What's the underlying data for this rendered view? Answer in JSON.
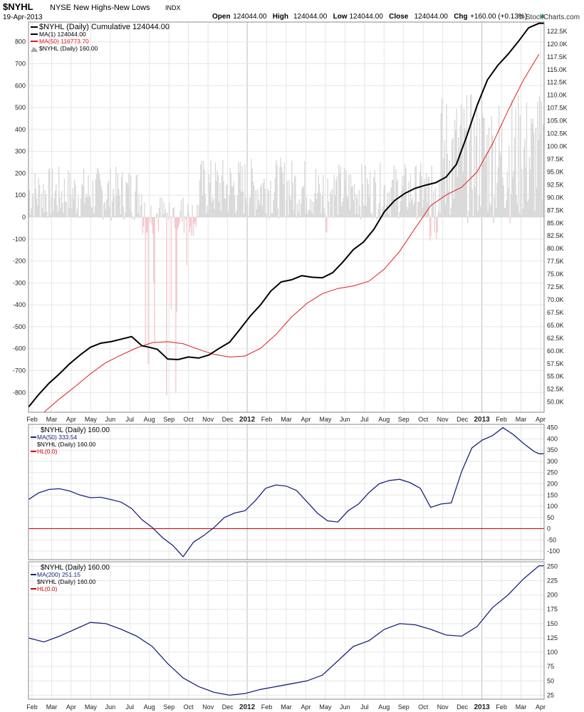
{
  "header": {
    "symbol": "$NYHL",
    "name": "NYSE New Highs-New Lows",
    "exchange": "INDX",
    "date": "19-Apr-2013",
    "brand": "© StockCharts.com",
    "quote": [
      {
        "label": "Open",
        "value": "124044.00"
      },
      {
        "label": "High",
        "value": "124044.00"
      },
      {
        "label": "Low",
        "value": "124044.00"
      },
      {
        "label": "Close",
        "value": "124044.00"
      },
      {
        "label": "Chg",
        "value": "+160.00 (+0.13%)"
      }
    ]
  },
  "colors": {
    "cumulative": "#000000",
    "ma50": "#e31a1c",
    "daily_pos": "#d9d9d9",
    "daily_neg": "#f4c9cc",
    "oscillator": "#1a237e",
    "zero_line": "#cc0000",
    "grid": "#e6e6e6",
    "up_arrow": "#2e8b57"
  },
  "x_months": [
    "Feb",
    "Mar",
    "Apr",
    "May",
    "Jun",
    "Jul",
    "Aug",
    "Sep",
    "Oct",
    "Nov",
    "Dec",
    "2012",
    "Feb",
    "Mar",
    "Apr",
    "May",
    "Jun",
    "Jul",
    "Aug",
    "Sep",
    "Oct",
    "Nov",
    "Dec",
    "2013",
    "Feb",
    "Mar",
    "Apr"
  ],
  "chart_data": [
    {
      "type": "line",
      "title": "$NYHL (Daily) Cumulative 124044.00",
      "legend": [
        {
          "label": "$NYHL (Daily) Cumulative 124044.00",
          "color": "#000000",
          "style": "line"
        },
        {
          "label": "MA(1) 124044.00",
          "color": "#000000",
          "style": "line"
        },
        {
          "label": "MA(50) 116773.70",
          "color": "#e31a1c",
          "style": "line"
        },
        {
          "label": "$NYHL (Daily) 160.00",
          "color": "#aaaaaa",
          "style": "area"
        }
      ],
      "right_axis": {
        "min": 48000,
        "max": 124300,
        "ticks": [
          "50.0K",
          "52.5K",
          "55.0K",
          "57.5K",
          "60.0K",
          "62.5K",
          "65.0K",
          "67.5K",
          "70.0K",
          "72.5K",
          "75.0K",
          "77.5K",
          "80.0K",
          "82.5K",
          "85.0K",
          "87.5K",
          "90.0K",
          "92.5K",
          "95.0K",
          "97.5K",
          "100.0K",
          "102.5K",
          "105.0K",
          "107.5K",
          "110.0K",
          "112.5K",
          "115.0K",
          "117.5K",
          "120.0K",
          "122.5K"
        ],
        "tick_values": [
          50000,
          52500,
          55000,
          57500,
          60000,
          62500,
          65000,
          67500,
          70000,
          72500,
          75000,
          77500,
          80000,
          82500,
          85000,
          87500,
          90000,
          92500,
          95000,
          97500,
          100000,
          102500,
          105000,
          107500,
          110000,
          112500,
          115000,
          117500,
          120000,
          122500
        ]
      },
      "left_axis": {
        "min": -890,
        "max": 890,
        "ticks": [
          "800",
          "700",
          "600",
          "500",
          "400",
          "300",
          "200",
          "100",
          "0",
          "-100",
          "-200",
          "-300",
          "-400",
          "-500",
          "-600",
          "-700",
          "-800"
        ],
        "tick_values": [
          800,
          700,
          600,
          500,
          400,
          300,
          200,
          100,
          0,
          -100,
          -200,
          -300,
          -400,
          -500,
          -600,
          -700,
          -800
        ]
      },
      "series": [
        {
          "name": "Cumulative / MA(1)",
          "axis": "right",
          "x": [
            0,
            0.02,
            0.04,
            0.06,
            0.08,
            0.1,
            0.12,
            0.14,
            0.16,
            0.18,
            0.2,
            0.22,
            0.235,
            0.25,
            0.27,
            0.29,
            0.31,
            0.33,
            0.35,
            0.37,
            0.39,
            0.41,
            0.43,
            0.45,
            0.47,
            0.49,
            0.51,
            0.53,
            0.55,
            0.57,
            0.59,
            0.61,
            0.63,
            0.65,
            0.67,
            0.69,
            0.71,
            0.73,
            0.75,
            0.77,
            0.79,
            0.81,
            0.83,
            0.85,
            0.87,
            0.89,
            0.91,
            0.93,
            0.95,
            0.97,
            0.99,
            1.0
          ],
          "values": [
            49000,
            51500,
            53700,
            55500,
            57500,
            59200,
            60700,
            61500,
            61800,
            62300,
            62800,
            61000,
            60700,
            60300,
            58400,
            58300,
            58800,
            58600,
            59200,
            60500,
            61700,
            64200,
            66800,
            69000,
            71700,
            73500,
            73900,
            74700,
            74400,
            74300,
            75300,
            77400,
            79800,
            81300,
            83800,
            87200,
            89400,
            90800,
            91800,
            92400,
            92900,
            94000,
            96500,
            102000,
            108000,
            113000,
            115800,
            118000,
            120500,
            123200,
            124044,
            124044
          ]
        },
        {
          "name": "MA(50)",
          "axis": "right",
          "x": [
            0.03,
            0.06,
            0.09,
            0.12,
            0.15,
            0.18,
            0.21,
            0.24,
            0.27,
            0.3,
            0.33,
            0.36,
            0.39,
            0.42,
            0.45,
            0.48,
            0.51,
            0.54,
            0.57,
            0.6,
            0.63,
            0.66,
            0.69,
            0.72,
            0.75,
            0.78,
            0.81,
            0.84,
            0.87,
            0.9,
            0.93,
            0.96,
            0.99
          ],
          "values": [
            48000,
            50600,
            53000,
            55500,
            57700,
            59200,
            60600,
            61600,
            61800,
            61400,
            60300,
            59300,
            58800,
            59000,
            60500,
            63200,
            66600,
            69300,
            71200,
            72200,
            72700,
            73600,
            76000,
            79500,
            84000,
            88400,
            90500,
            92000,
            95000,
            100500,
            107000,
            113000,
            118000
          ]
        },
        {
          "name": "$NYHL (Daily)",
          "axis": "left",
          "kind": "area"
        }
      ],
      "ylim": [
        48000,
        124300
      ]
    },
    {
      "type": "line",
      "legend": [
        {
          "label": "$NYHL (Daily) 160.00",
          "style": "title"
        },
        {
          "label": "MA(50) 333.54",
          "color": "#1a237e",
          "style": "line"
        },
        {
          "label": "$NYHL (Daily) 160.00",
          "style": "plain"
        },
        {
          "label": "HL(0.0)",
          "color": "#cc0000",
          "style": "line"
        }
      ],
      "ylim": [
        -138,
        465
      ],
      "right_axis": {
        "ticks": [
          "450",
          "400",
          "350",
          "300",
          "250",
          "200",
          "150",
          "100",
          "50",
          "0",
          "-50",
          "-100"
        ],
        "tick_values": [
          450,
          400,
          350,
          300,
          250,
          200,
          150,
          100,
          50,
          0,
          -50,
          -100
        ]
      },
      "series": [
        {
          "name": "MA(50)",
          "x": [
            0,
            0.02,
            0.04,
            0.06,
            0.08,
            0.1,
            0.12,
            0.14,
            0.16,
            0.18,
            0.2,
            0.22,
            0.24,
            0.26,
            0.28,
            0.3,
            0.32,
            0.34,
            0.36,
            0.38,
            0.4,
            0.42,
            0.44,
            0.46,
            0.48,
            0.5,
            0.52,
            0.54,
            0.56,
            0.58,
            0.6,
            0.62,
            0.64,
            0.66,
            0.68,
            0.7,
            0.72,
            0.74,
            0.76,
            0.78,
            0.8,
            0.82,
            0.84,
            0.86,
            0.88,
            0.9,
            0.92,
            0.94,
            0.96,
            0.98,
            0.99,
            1.0
          ],
          "values": [
            130,
            160,
            175,
            178,
            168,
            150,
            138,
            140,
            130,
            118,
            90,
            40,
            5,
            -40,
            -75,
            -125,
            -60,
            -30,
            5,
            50,
            70,
            80,
            125,
            180,
            195,
            190,
            170,
            120,
            70,
            35,
            30,
            80,
            110,
            160,
            200,
            215,
            220,
            205,
            180,
            95,
            110,
            115,
            255,
            360,
            395,
            415,
            450,
            420,
            380,
            345,
            334,
            334
          ]
        },
        {
          "name": "HL(0.0)",
          "values": [
            0,
            0
          ]
        }
      ]
    },
    {
      "type": "line",
      "legend": [
        {
          "label": "$NYHL (Daily) 160.00",
          "style": "title"
        },
        {
          "label": "MA(200) 251.15",
          "color": "#1a237e",
          "style": "line"
        },
        {
          "label": "$NYHL (Daily) 160.00",
          "style": "plain"
        },
        {
          "label": "HL(0.0)",
          "color": "#cc0000",
          "style": "line"
        }
      ],
      "ylim": [
        18,
        258
      ],
      "right_axis": {
        "ticks": [
          "250",
          "225",
          "200",
          "175",
          "150",
          "125",
          "100",
          "75",
          "50",
          "25"
        ],
        "tick_values": [
          250,
          225,
          200,
          175,
          150,
          125,
          100,
          75,
          50,
          25
        ]
      },
      "series": [
        {
          "name": "MA(200)",
          "x": [
            0,
            0.03,
            0.06,
            0.09,
            0.12,
            0.15,
            0.18,
            0.21,
            0.24,
            0.27,
            0.3,
            0.33,
            0.36,
            0.39,
            0.42,
            0.45,
            0.48,
            0.51,
            0.54,
            0.57,
            0.6,
            0.63,
            0.66,
            0.69,
            0.72,
            0.75,
            0.78,
            0.81,
            0.84,
            0.87,
            0.9,
            0.93,
            0.96,
            0.99,
            1.0
          ],
          "values": [
            125,
            118,
            128,
            140,
            152,
            150,
            140,
            128,
            110,
            80,
            55,
            40,
            30,
            25,
            28,
            35,
            40,
            45,
            50,
            60,
            85,
            110,
            120,
            140,
            150,
            148,
            140,
            130,
            128,
            145,
            178,
            200,
            228,
            251,
            251
          ]
        }
      ]
    }
  ]
}
